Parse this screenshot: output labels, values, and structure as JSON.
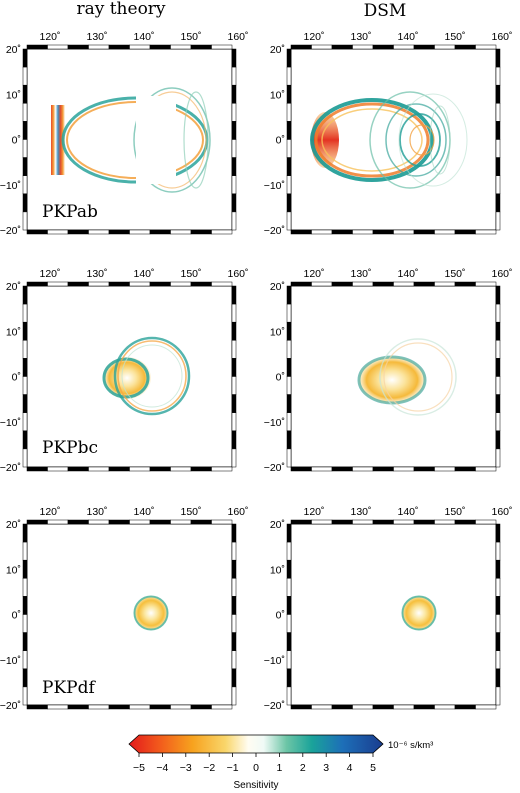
{
  "columns": [
    "ray theory",
    "DSM"
  ],
  "x_ticks": [
    "120˚",
    "130˚",
    "140˚",
    "150˚",
    "160˚"
  ],
  "y_ticks": [
    "20˚",
    "10˚",
    "0˚",
    "−10˚",
    "−20˚"
  ],
  "rows": [
    {
      "phase": "PKPab"
    },
    {
      "phase": "PKPbc"
    },
    {
      "phase": "PKPdf"
    }
  ],
  "colorbar": {
    "title": "Sensitivity",
    "unit": "10⁻⁶ s/km³",
    "range": [
      -5,
      5
    ],
    "ticks": [
      "−5",
      "−4",
      "−3",
      "−2",
      "−1",
      "0",
      "1",
      "2",
      "3",
      "4",
      "5"
    ]
  }
}
